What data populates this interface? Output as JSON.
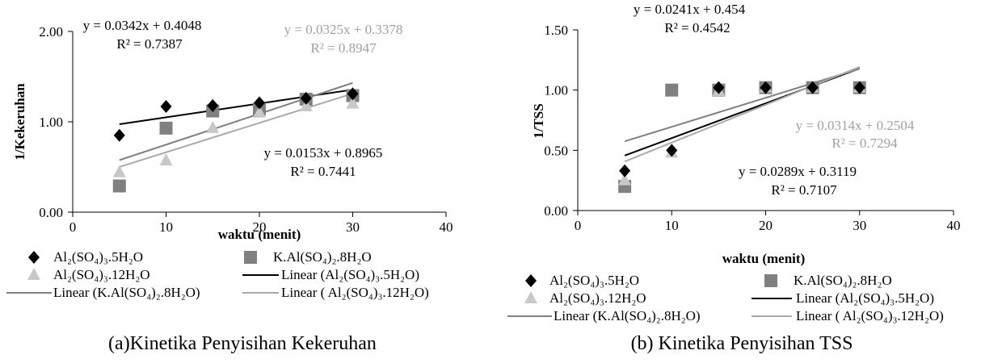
{
  "colors": {
    "al5": "#000000",
    "k8": "#808080",
    "al12": "#c8c8c8",
    "lin_al5": "#000000",
    "lin_k8": "#808080",
    "lin_al12": "#aaaaaa",
    "eq_black": "#000000",
    "eq_gray": "#a0a0a0"
  },
  "chart_data": [
    {
      "type": "scatter",
      "caption": "(a)Kinetika Penyisihan Kekeruhan",
      "xlabel": "waktu (menit)",
      "ylabel": "1/Kekeruhan",
      "xlim": [
        0,
        40
      ],
      "ylim": [
        0,
        2
      ],
      "xticks": [
        "0",
        "10",
        "20",
        "30",
        "40"
      ],
      "yticks": [
        "0.00",
        "1.00",
        "2.00"
      ],
      "x": [
        5,
        10,
        15,
        20,
        25,
        30
      ],
      "series": [
        {
          "key": "al5",
          "name": "Al₂(SO₄)₃.5H₂O",
          "marker": "diamond",
          "values": [
            0.85,
            1.17,
            1.18,
            1.21,
            1.26,
            1.31
          ]
        },
        {
          "key": "k8",
          "name": "K.Al(SO₄)₂.8H₂O",
          "marker": "square",
          "values": [
            0.29,
            0.93,
            1.12,
            1.14,
            1.25,
            1.29
          ]
        },
        {
          "key": "al12",
          "name": " Al₂(SO₄)₃.12H₂O",
          "marker": "triangle",
          "values": [
            0.44,
            0.57,
            0.93,
            1.1,
            1.17,
            1.2
          ]
        }
      ],
      "trendlines": [
        {
          "key": "al5",
          "name": "Linear (Al₂(SO₄)₃.5H₂O)",
          "slope": 0.0153,
          "intercept": 0.8965,
          "x_range": [
            5,
            30
          ],
          "equation": "y = 0.0153x + 0.8965",
          "r2": "R² = 0.7441"
        },
        {
          "key": "k8",
          "name": "Linear (K.Al(SO₄)₂.8H₂O)",
          "slope": 0.0342,
          "intercept": 0.4048,
          "x_range": [
            5,
            30
          ],
          "equation": "y = 0.0342x + 0.4048",
          "r2": "R² = 0.7387"
        },
        {
          "key": "al12",
          "name": "Linear ( Al₂(SO₄)₃.12H₂O)",
          "slope": 0.0325,
          "intercept": 0.3378,
          "x_range": [
            5,
            30
          ],
          "equation": "y = 0.0325x + 0.3378",
          "r2": "R² = 0.8947"
        }
      ]
    },
    {
      "type": "scatter",
      "caption": "(b) Kinetika Penyisihan TSS",
      "xlabel": "waktu (menit)",
      "ylabel": "1/TSS",
      "xlim": [
        0,
        40
      ],
      "ylim": [
        0,
        1.5
      ],
      "xticks": [
        "0",
        "10",
        "20",
        "30",
        "40"
      ],
      "yticks": [
        "0.00",
        "0.50",
        "1.00",
        "1.50"
      ],
      "x": [
        5,
        10,
        15,
        20,
        25,
        30
      ],
      "series": [
        {
          "key": "al5",
          "name": "Al₂(SO₄)₃.5H₂O",
          "marker": "diamond",
          "values": [
            0.33,
            0.5,
            1.02,
            1.02,
            1.02,
            1.02
          ]
        },
        {
          "key": "k8",
          "name": "K.Al(SO₄)₂.8H₂O",
          "marker": "square",
          "values": [
            0.2,
            1.0,
            1.0,
            1.02,
            1.02,
            1.02
          ]
        },
        {
          "key": "al12",
          "name": " Al₂(SO₄)₃.12H₂O",
          "marker": "triangle",
          "values": [
            0.25,
            0.48,
            0.99,
            1.02,
            1.02,
            1.02
          ]
        }
      ],
      "trendlines": [
        {
          "key": "al5",
          "name": "Linear (Al₂(SO₄)₃.5H₂O)",
          "slope": 0.0289,
          "intercept": 0.3119,
          "x_range": [
            5,
            30
          ],
          "equation": "y = 0.0289x + 0.3119",
          "r2": "R² = 0.7107"
        },
        {
          "key": "k8",
          "name": "Linear (K.Al(SO₄)₂.8H₂O)",
          "slope": 0.0241,
          "intercept": 0.454,
          "x_range": [
            5,
            30
          ],
          "equation": "y = 0.0241x + 0.454",
          "r2": "R² = 0.4542"
        },
        {
          "key": "al12",
          "name": "Linear ( Al₂(SO₄)₃.12H₂O)",
          "slope": 0.0314,
          "intercept": 0.2504,
          "x_range": [
            5,
            30
          ],
          "equation": "y = 0.0314x + 0.2504",
          "r2": "R² = 0.7294"
        }
      ]
    }
  ]
}
